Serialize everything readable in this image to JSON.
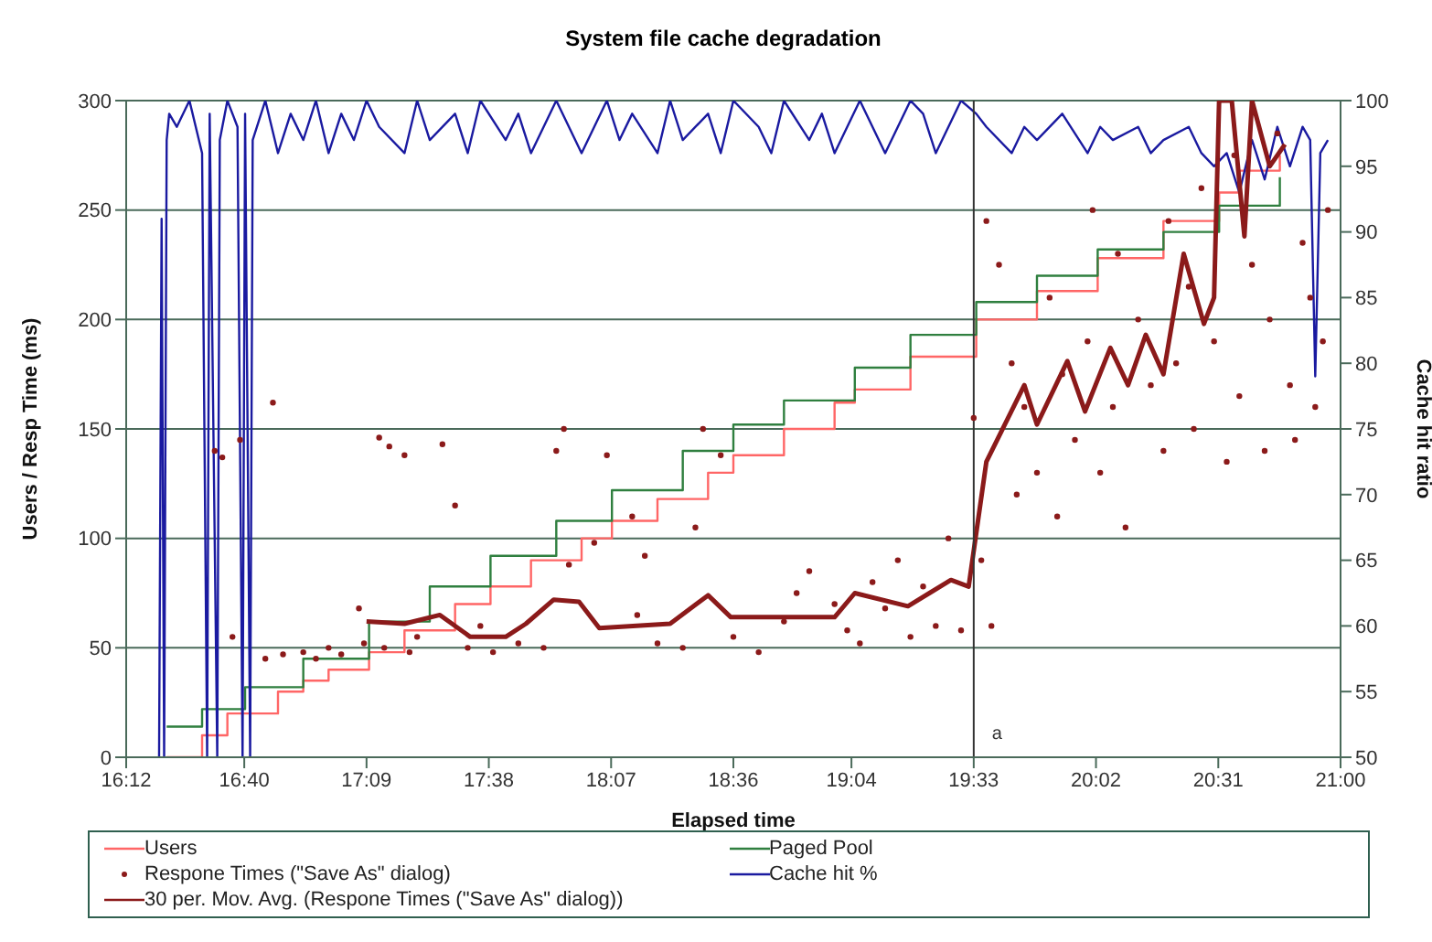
{
  "chart_data": {
    "type": "line",
    "title": "System file cache degradation",
    "xlabel": "Elapsed time",
    "ylabel": "Users / Resp Time (ms)",
    "y2label": "Cache hit ratio",
    "xlim": [
      16.2,
      21.0
    ],
    "xticks": [
      {
        "value": 16.2,
        "label": "16:12"
      },
      {
        "value": 16.6667,
        "label": "16:40"
      },
      {
        "value": 17.15,
        "label": "17:09"
      },
      {
        "value": 17.6333,
        "label": "17:38"
      },
      {
        "value": 18.1167,
        "label": "18:07"
      },
      {
        "value": 18.6,
        "label": "18:36"
      },
      {
        "value": 19.0667,
        "label": "19:04"
      },
      {
        "value": 19.55,
        "label": "19:33"
      },
      {
        "value": 20.0333,
        "label": "20:02"
      },
      {
        "value": 20.5167,
        "label": "20:31"
      },
      {
        "value": 21.0,
        "label": "21:00"
      }
    ],
    "ylim": [
      0,
      300
    ],
    "yticks": [
      0,
      50,
      100,
      150,
      200,
      250,
      300
    ],
    "y2lim": [
      50,
      100
    ],
    "y2ticks": [
      50,
      55,
      60,
      65,
      70,
      75,
      80,
      85,
      90,
      95,
      100
    ],
    "grid": "y",
    "legend": "bottom",
    "ref_lines": [
      {
        "axis": "x",
        "value": 19.55,
        "label": "a",
        "color": "#333333"
      }
    ],
    "series": [
      {
        "name": "Users",
        "type": "step",
        "color": "#ff6666",
        "x": [
          16.36,
          16.5,
          16.6,
          16.8,
          16.9,
          17.0,
          17.16,
          17.3,
          17.5,
          17.64,
          17.8,
          18.0,
          18.12,
          18.3,
          18.5,
          18.6,
          18.8,
          19.0,
          19.08,
          19.3,
          19.56,
          19.8,
          20.04,
          20.3,
          20.52,
          20.6,
          20.76
        ],
        "values": [
          0,
          10,
          20,
          30,
          35,
          40,
          48,
          58,
          70,
          78,
          90,
          100,
          108,
          118,
          130,
          138,
          150,
          162,
          168,
          183,
          200,
          213,
          228,
          245,
          258,
          268,
          275
        ]
      },
      {
        "name": "Paged Pool",
        "type": "step",
        "color": "#2f7f3f",
        "x": [
          16.36,
          16.5,
          16.67,
          16.9,
          17.16,
          17.4,
          17.64,
          17.9,
          18.12,
          18.4,
          18.6,
          18.8,
          19.08,
          19.3,
          19.56,
          19.8,
          20.04,
          20.3,
          20.52,
          20.76
        ],
        "values": [
          14,
          22,
          32,
          45,
          62,
          78,
          92,
          108,
          122,
          140,
          152,
          163,
          178,
          193,
          208,
          220,
          232,
          240,
          252,
          265
        ]
      },
      {
        "name": "Respone Times (\"Save As\" dialog)",
        "type": "scatter",
        "marker": "circle",
        "color": "#8b1a1a",
        "x": [
          16.55,
          16.58,
          16.62,
          16.65,
          16.78,
          16.75,
          16.82,
          16.9,
          16.95,
          17.0,
          17.05,
          17.12,
          17.14,
          17.2,
          17.24,
          17.3,
          17.22,
          17.32,
          17.35,
          17.45,
          17.5,
          17.55,
          17.6,
          17.65,
          17.75,
          17.85,
          17.9,
          17.93,
          17.95,
          18.05,
          18.1,
          18.2,
          18.22,
          18.3,
          18.25,
          18.4,
          18.45,
          18.48,
          18.55,
          18.6,
          18.7,
          18.8,
          18.85,
          18.9,
          19.0,
          19.05,
          19.1,
          19.15,
          19.2,
          19.25,
          19.3,
          19.35,
          19.4,
          19.45,
          19.5,
          19.55,
          19.58,
          19.6,
          19.62,
          19.65,
          19.7,
          19.72,
          19.75,
          19.8,
          19.85,
          19.88,
          19.9,
          19.95,
          20.0,
          20.02,
          20.05,
          20.1,
          20.12,
          20.15,
          20.2,
          20.25,
          20.3,
          20.32,
          20.35,
          20.4,
          20.42,
          20.45,
          20.5,
          20.55,
          20.58,
          20.6,
          20.65,
          20.7,
          20.72,
          20.75,
          20.8,
          20.82,
          20.85,
          20.88,
          20.9,
          20.93,
          20.95
        ],
        "values": [
          140,
          137,
          55,
          145,
          162,
          45,
          47,
          48,
          45,
          50,
          47,
          68,
          52,
          146,
          142,
          138,
          50,
          48,
          55,
          143,
          115,
          50,
          60,
          48,
          52,
          50,
          140,
          150,
          88,
          98,
          138,
          110,
          65,
          52,
          92,
          50,
          105,
          150,
          138,
          55,
          48,
          62,
          75,
          85,
          70,
          58,
          52,
          80,
          68,
          90,
          55,
          78,
          60,
          100,
          58,
          155,
          90,
          245,
          60,
          225,
          180,
          120,
          160,
          130,
          210,
          110,
          175,
          145,
          190,
          250,
          130,
          160,
          230,
          105,
          200,
          170,
          140,
          245,
          180,
          215,
          150,
          260,
          190,
          135,
          275,
          165,
          225,
          140,
          200,
          285,
          170,
          145,
          235,
          210,
          160,
          190,
          250
        ]
      },
      {
        "name": "Cache hit %",
        "axis": "y2",
        "color": "#1a1aa0",
        "x": [
          16.33,
          16.34,
          16.35,
          16.36,
          16.37,
          16.4,
          16.45,
          16.5,
          16.52,
          16.53,
          16.56,
          16.57,
          16.6,
          16.64,
          16.66,
          16.67,
          16.69,
          16.7,
          16.75,
          16.8,
          16.85,
          16.9,
          16.95,
          17.0,
          17.05,
          17.1,
          17.15,
          17.2,
          17.3,
          17.35,
          17.4,
          17.5,
          17.55,
          17.6,
          17.7,
          17.75,
          17.8,
          17.9,
          17.95,
          18.0,
          18.1,
          18.15,
          18.2,
          18.3,
          18.35,
          18.4,
          18.5,
          18.55,
          18.6,
          18.7,
          18.75,
          18.8,
          18.9,
          18.95,
          19.0,
          19.1,
          19.15,
          19.2,
          19.3,
          19.35,
          19.4,
          19.5,
          19.56,
          19.6,
          19.7,
          19.75,
          19.8,
          19.9,
          20.0,
          20.05,
          20.1,
          20.2,
          20.25,
          20.3,
          20.4,
          20.45,
          20.5,
          20.55,
          20.6,
          20.65,
          20.7,
          20.75,
          20.8,
          20.85,
          20.88,
          20.9,
          20.92,
          20.95
        ],
        "values": [
          50,
          91,
          50,
          97,
          99,
          98,
          100,
          96,
          50,
          99,
          50,
          97,
          100,
          98,
          50,
          99,
          50,
          97,
          100,
          96,
          99,
          97,
          100,
          96,
          99,
          97,
          100,
          98,
          96,
          100,
          97,
          99,
          96,
          100,
          97,
          99,
          96,
          100,
          98,
          96,
          100,
          97,
          99,
          96,
          100,
          97,
          99,
          96,
          100,
          98,
          96,
          100,
          97,
          99,
          96,
          100,
          98,
          96,
          100,
          99,
          96,
          100,
          99,
          98,
          96,
          98,
          97,
          99,
          96,
          98,
          97,
          98,
          96,
          97,
          98,
          96,
          95,
          96,
          93,
          97,
          94,
          98,
          95,
          98,
          97,
          79,
          96,
          97
        ]
      },
      {
        "name": "30 per. Mov. Avg. (Respone Times (\"Save As\" dialog))",
        "color": "#8b1a1a",
        "x": [
          17.15,
          17.3,
          17.44,
          17.56,
          17.7,
          17.78,
          17.89,
          17.99,
          18.07,
          18.35,
          18.5,
          18.59,
          18.81,
          19.0,
          19.08,
          19.29,
          19.46,
          19.53,
          19.6,
          19.75,
          19.8,
          19.92,
          19.99,
          20.09,
          20.16,
          20.23,
          20.3,
          20.38,
          20.46,
          20.5,
          20.52,
          20.57,
          20.62,
          20.65,
          20.72,
          20.78
        ],
        "values": [
          62,
          61,
          65,
          55,
          55,
          61,
          72,
          71,
          59,
          61,
          74,
          64,
          64,
          64,
          75,
          69,
          81,
          78,
          135,
          170,
          152,
          181,
          158,
          187,
          170,
          193,
          175,
          230,
          198,
          210,
          300,
          300,
          238,
          300,
          270,
          280
        ]
      }
    ]
  }
}
